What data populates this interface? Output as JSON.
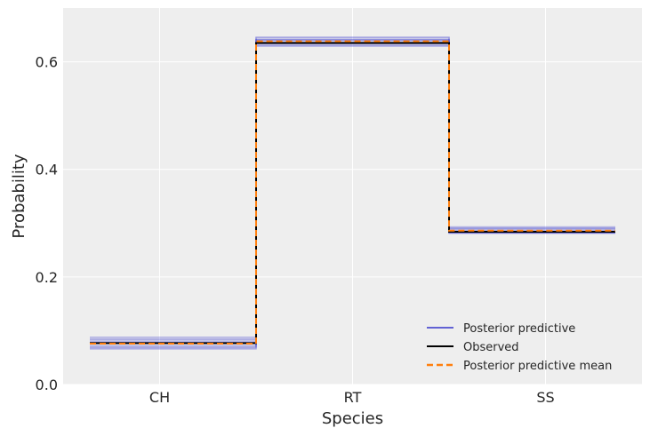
{
  "chart_data": {
    "type": "line",
    "title": "",
    "xlabel": "Species",
    "ylabel": "Probability",
    "categories": [
      "CH",
      "RT",
      "SS"
    ],
    "ylim": [
      0,
      0.7
    ],
    "yticks": [
      0.0,
      0.2,
      0.4,
      0.6
    ],
    "ytick_labels": [
      "0.0",
      "0.2",
      "0.4",
      "0.6"
    ],
    "grid": true,
    "legend_position": "bottom-right",
    "series": [
      {
        "name": "Posterior predictive",
        "kind": "samples",
        "color": "#3333cc",
        "samples": [
          [
            0.088,
            0.63,
            0.282
          ],
          [
            0.066,
            0.641,
            0.293
          ],
          [
            0.08,
            0.636,
            0.284
          ],
          [
            0.072,
            0.644,
            0.284
          ],
          [
            0.085,
            0.633,
            0.282
          ],
          [
            0.07,
            0.639,
            0.291
          ],
          [
            0.078,
            0.641,
            0.281
          ],
          [
            0.083,
            0.629,
            0.288
          ],
          [
            0.068,
            0.646,
            0.286
          ],
          [
            0.076,
            0.634,
            0.29
          ]
        ]
      },
      {
        "name": "Observed",
        "kind": "observed",
        "color": "#000000",
        "values": [
          0.077,
          0.635,
          0.284
        ]
      },
      {
        "name": "Posterior predictive mean",
        "kind": "mean",
        "color": "#ff7f0e",
        "values": [
          0.076,
          0.638,
          0.286
        ]
      }
    ]
  }
}
